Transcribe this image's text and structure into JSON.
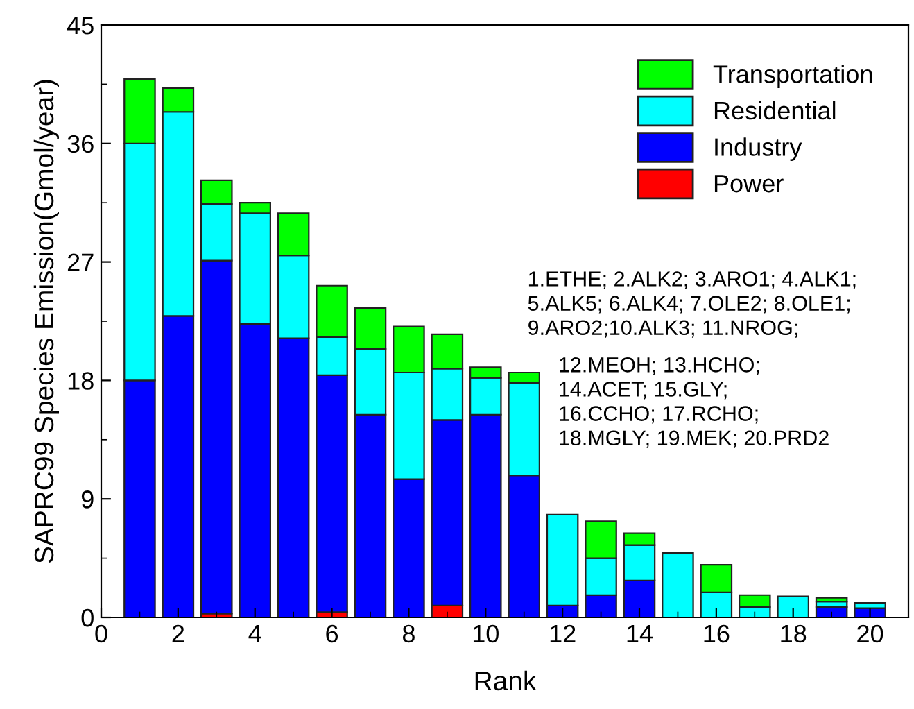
{
  "chart_data": {
    "type": "bar",
    "stacked": true,
    "xlabel": "Rank",
    "ylabel": "SAPRC99 Species Emission(Gmol/year)",
    "x": [
      1,
      2,
      3,
      4,
      5,
      6,
      7,
      8,
      9,
      10,
      11,
      12,
      13,
      14,
      15,
      16,
      17,
      18,
      19,
      20
    ],
    "xlim": [
      0,
      21
    ],
    "xticks": [
      0,
      2,
      4,
      6,
      8,
      10,
      12,
      14,
      16,
      18,
      20
    ],
    "ylim": [
      0,
      45
    ],
    "yticks": [
      0,
      9,
      18,
      27,
      36,
      45
    ],
    "series": [
      {
        "name": "Power",
        "color": "#ff0000",
        "values": [
          0,
          0,
          0.3,
          null,
          0,
          0.4,
          0,
          null,
          0.9,
          0,
          0,
          0,
          0,
          0,
          0,
          0,
          0,
          0,
          0,
          0
        ]
      },
      {
        "name": "Industry",
        "color": "#0000ff",
        "values": [
          18.0,
          22.9,
          26.8,
          22.3,
          21.2,
          18.0,
          15.4,
          10.5,
          14.1,
          15.4,
          10.8,
          0.9,
          1.7,
          2.8,
          0,
          0,
          0,
          0,
          0.8,
          0.7
        ]
      },
      {
        "name": "Residential",
        "color": "#00ffff",
        "values": [
          18.0,
          15.5,
          4.3,
          8.4,
          6.3,
          2.9,
          5.0,
          8.1,
          3.9,
          2.8,
          7.0,
          6.9,
          2.8,
          2.7,
          4.9,
          1.9,
          0.8,
          1.6,
          0.4,
          0.4
        ]
      },
      {
        "name": "Transportation",
        "color": "#00ff00",
        "values": [
          4.9,
          1.8,
          1.8,
          0.8,
          3.2,
          3.9,
          3.1,
          3.5,
          2.6,
          0.8,
          0.8,
          0,
          2.8,
          0.9,
          0,
          2.1,
          0.9,
          0,
          0.3,
          0
        ]
      }
    ],
    "legend": "top right",
    "grid": false,
    "annotations": [
      "1.ETHE; 2.ALK2; 3.ARO1; 4.ALK1;\n5.ALK5; 6.ALK4; 7.OLE2; 8.OLE1;\n9.ARO2;10.ALK3; 11.NROG;",
      "12.MEOH; 13.HCHO;\n14.ACET; 15.GLY;\n16.CCHO; 17.RCHO;\n18.MGLY; 19.MEK; 20.PRD2"
    ]
  }
}
